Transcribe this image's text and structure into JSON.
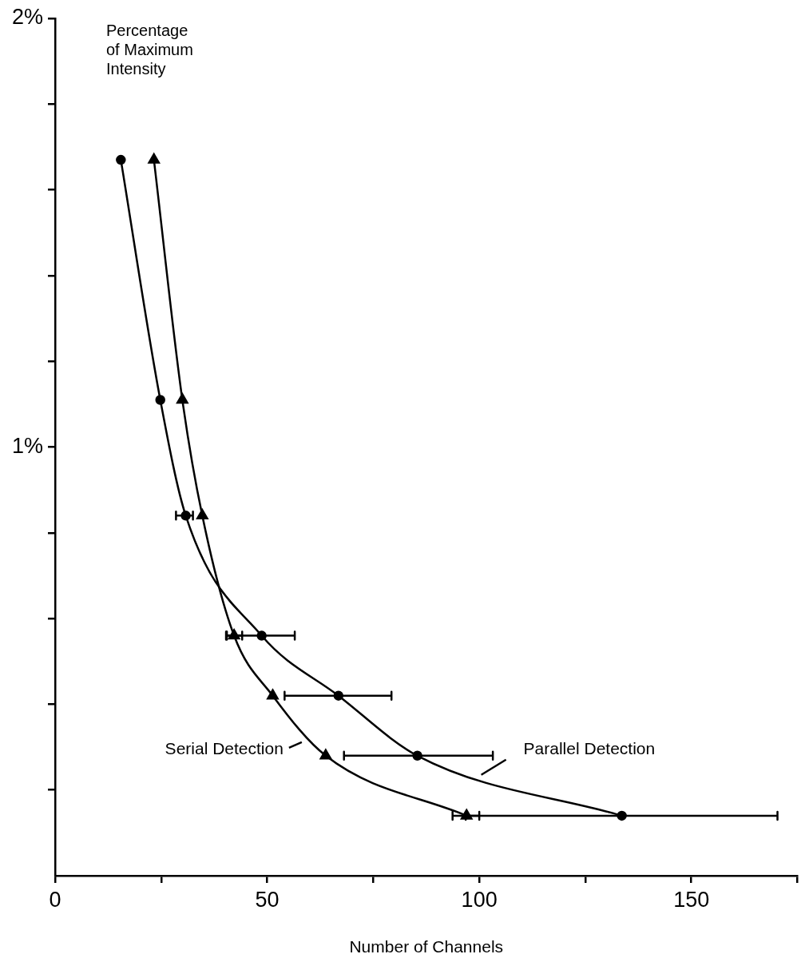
{
  "chart_data": {
    "type": "line",
    "xlabel": "Number of Channels",
    "ylabel": "Percentage of Maximum Intensity",
    "xlim": [
      0,
      175
    ],
    "ylim": [
      0,
      2
    ],
    "xticks": [
      0,
      {
        "value": 25,
        "label": null
      },
      50,
      {
        "value": 75,
        "label": null
      },
      100,
      {
        "value": 125,
        "label": null
      },
      150,
      {
        "value": 175,
        "label": null
      }
    ],
    "yticks": [
      {
        "value": 0.2,
        "label": null
      },
      {
        "value": 0.4,
        "label": null
      },
      {
        "value": 0.6,
        "label": null
      },
      {
        "value": 0.8,
        "label": null
      },
      {
        "value": 1,
        "label": "1%"
      },
      {
        "value": 1.2,
        "label": null
      },
      {
        "value": 1.4,
        "label": null
      },
      {
        "value": 1.6,
        "label": null
      },
      {
        "value": 1.8,
        "label": null
      },
      {
        "value": 2,
        "label": "2%"
      }
    ],
    "grid": false,
    "series": [
      {
        "name": "Serial Detection",
        "color": "#000000",
        "marker": "triangle",
        "x": [
          23.3,
          30.0,
          34.7,
          42.2,
          51.3,
          63.8,
          97.0
        ],
        "values": [
          1.67,
          1.11,
          0.84,
          0.56,
          0.42,
          0.28,
          0.14
        ],
        "xerrors": [
          null,
          null,
          null,
          [
            40.3,
            44.1
          ],
          null,
          null,
          [
            93.7,
            100.0
          ]
        ]
      },
      {
        "name": "Parallel Detection",
        "color": "#000000",
        "marker": "circle",
        "x": [
          15.5,
          24.8,
          30.8,
          48.7,
          66.8,
          85.4,
          133.6
        ],
        "values": [
          1.67,
          1.11,
          0.84,
          0.56,
          0.42,
          0.28,
          0.14
        ],
        "xerrors": [
          null,
          null,
          [
            28.5,
            32.5
          ],
          [
            40.5,
            56.5
          ],
          [
            54.1,
            79.3
          ],
          [
            68.1,
            103.2
          ],
          [
            96.8,
            170.3
          ]
        ]
      }
    ]
  }
}
